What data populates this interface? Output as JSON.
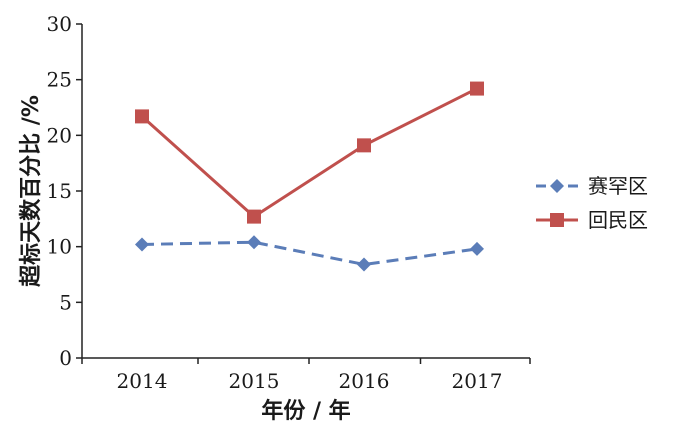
{
  "chart_data": {
    "type": "line",
    "title": "",
    "xlabel": "年份 / 年",
    "ylabel": "超标天数百分比 /%",
    "categories": [
      "2014",
      "2015",
      "2016",
      "2017"
    ],
    "ylim": [
      0,
      30
    ],
    "yticks": [
      0,
      5,
      10,
      15,
      20,
      25,
      30
    ],
    "grid": false,
    "legend_position": "right",
    "series": [
      {
        "name": "赛罕区",
        "values": [
          10.2,
          10.4,
          8.4,
          9.8
        ],
        "color": "#5b7db8",
        "line_style": "dashed",
        "marker": "diamond"
      },
      {
        "name": "回民区",
        "values": [
          21.7,
          12.7,
          19.1,
          24.2
        ],
        "color": "#c0504d",
        "line_style": "solid",
        "marker": "square"
      }
    ]
  }
}
